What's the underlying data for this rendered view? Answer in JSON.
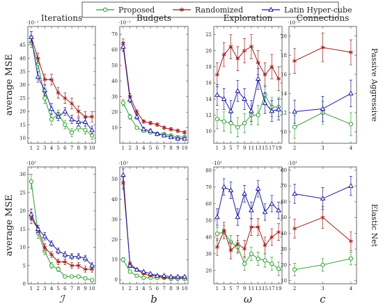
{
  "legend": [
    {
      "name": "Proposed",
      "color": "#2e9e2e",
      "marker": "circle"
    },
    {
      "name": "Randomized",
      "color": "#a01818",
      "marker": "star"
    },
    {
      "name": "Latin Hyper-cube",
      "color": "#1a1a9a",
      "marker": "triangle"
    }
  ],
  "chart_data": [
    {
      "type": "line",
      "title": "Iterations",
      "y_label": "average MSE",
      "scale_label": "·10⁻¹",
      "x": [
        1,
        2,
        3,
        4,
        5,
        6,
        7,
        8,
        9,
        10
      ],
      "xlim": [
        0.5,
        10.5
      ],
      "xticks": [
        1,
        2,
        3,
        4,
        5,
        6,
        7,
        8,
        9,
        10
      ],
      "ylim": [
        8,
        52
      ],
      "yticks": [
        10,
        15,
        20,
        25,
        30,
        35,
        40,
        45
      ],
      "series": [
        {
          "values": [
            46,
            38,
            25,
            17,
            19,
            15,
            12,
            14,
            13,
            11
          ],
          "errors": [
            2,
            2,
            2,
            2,
            1.5,
            1.5,
            1.5,
            1.5,
            1.5,
            1.5
          ]
        },
        {
          "values": [
            48,
            40,
            32,
            32,
            27,
            25,
            23,
            20,
            18,
            18
          ],
          "errors": [
            2,
            2,
            2,
            2,
            2,
            2,
            2,
            2,
            2,
            2
          ]
        },
        {
          "values": [
            48,
            33,
            28,
            21,
            18,
            20,
            17,
            16,
            16,
            13
          ],
          "errors": [
            2,
            2,
            2,
            2,
            1.5,
            1.5,
            1.5,
            1.5,
            1.5,
            1.5
          ]
        }
      ]
    },
    {
      "type": "line",
      "title": "Budgets",
      "scale_label": "·10⁻¹",
      "x": [
        1,
        2,
        3,
        4,
        5,
        6,
        7,
        8,
        9,
        10
      ],
      "xlim": [
        0.5,
        10.5
      ],
      "xticks": [
        1,
        2,
        3,
        4,
        5,
        6,
        7,
        8,
        9,
        10
      ],
      "ylim": [
        0,
        75
      ],
      "yticks": [
        10,
        20,
        30,
        40,
        50,
        60,
        70
      ],
      "series": [
        {
          "values": [
            26,
            17,
            10,
            8,
            7,
            6,
            6,
            5,
            4,
            4
          ],
          "errors": [
            2,
            1.5,
            1,
            1,
            1,
            1,
            1,
            1,
            1,
            1
          ]
        },
        {
          "values": [
            64,
            30,
            20,
            14,
            13,
            12,
            10,
            9,
            8,
            7
          ],
          "errors": [
            3,
            2,
            1.5,
            1,
            1,
            1,
            1,
            1,
            1,
            1
          ]
        },
        {
          "values": [
            62,
            28,
            17,
            9,
            8,
            6,
            5,
            4,
            3,
            3
          ],
          "errors": [
            3,
            2,
            1.5,
            1,
            1,
            1,
            1,
            1,
            1,
            1
          ]
        }
      ]
    },
    {
      "type": "line",
      "title": "Exploration",
      "x": [
        1,
        3,
        5,
        7,
        9,
        11,
        13,
        15,
        17,
        19
      ],
      "xlim": [
        0,
        20
      ],
      "xticks": [
        1,
        3,
        5,
        7,
        9,
        11,
        13,
        15,
        17,
        19
      ],
      "ylim": [
        8.5,
        23
      ],
      "yticks": [
        10,
        12,
        14,
        16,
        18,
        20,
        22
      ],
      "series": [
        {
          "values": [
            11.5,
            11.2,
            11,
            10.5,
            11,
            12,
            12,
            14.5,
            13,
            13
          ],
          "errors": [
            1.2,
            1.2,
            1.2,
            1.2,
            1.2,
            1.2,
            1.2,
            1.2,
            1.2,
            1.2
          ]
        },
        {
          "values": [
            17,
            19.5,
            20.5,
            19,
            20,
            20.5,
            18.5,
            17,
            18,
            16.5
          ],
          "errors": [
            1.5,
            1.5,
            1.5,
            1.5,
            1.5,
            1.5,
            1.5,
            1.5,
            1.5,
            1.5
          ]
        },
        {
          "values": [
            14.5,
            14,
            12.5,
            15,
            14,
            12.5,
            16.5,
            13.5,
            12.5,
            12.7
          ],
          "errors": [
            1.3,
            1.3,
            1.3,
            1.3,
            1.3,
            1.3,
            1.3,
            1.3,
            1.3,
            1.3
          ]
        }
      ]
    },
    {
      "type": "line",
      "title": "Connections",
      "right_label": "Passive Aggressive",
      "scale_label": "·10⁻¹",
      "x": [
        2,
        3,
        4
      ],
      "xlim": [
        1.8,
        4.2
      ],
      "xticks": [
        2,
        3,
        4
      ],
      "ylim": [
        8.8,
        21
      ],
      "yticks": [
        10,
        12,
        14,
        16,
        18,
        20
      ],
      "series": [
        {
          "values": [
            10.5,
            12,
            10.8
          ],
          "errors": [
            1.2,
            1.2,
            1.2
          ]
        },
        {
          "values": [
            17.4,
            18.8,
            18.3
          ],
          "errors": [
            1.3,
            1.5,
            1.3
          ]
        },
        {
          "values": [
            12.1,
            12.4,
            14
          ],
          "errors": [
            1.2,
            1.3,
            1.4
          ]
        }
      ]
    },
    {
      "type": "line",
      "y_label": "average MSE",
      "x_label": "ℐ",
      "scale_label": "·10²",
      "x": [
        1,
        2,
        3,
        4,
        5,
        6,
        7,
        8,
        9,
        10
      ],
      "xlim": [
        0.5,
        10.5
      ],
      "xticks": [
        1,
        2,
        3,
        4,
        5,
        6,
        7,
        8,
        9,
        10
      ],
      "ylim": [
        0,
        32
      ],
      "yticks": [
        0,
        5,
        10,
        15,
        20,
        25,
        30
      ],
      "series": [
        {
          "values": [
            28,
            14,
            9,
            5,
            4,
            2,
            2,
            2,
            1.5,
            1
          ],
          "errors": [
            2,
            1.5,
            1,
            0.8,
            0.6,
            0.4,
            0.4,
            0.4,
            0.3,
            0.3
          ]
        },
        {
          "values": [
            18,
            15,
            10,
            8,
            6,
            6,
            5,
            5,
            4,
            4
          ],
          "errors": [
            1.5,
            1,
            1,
            0.8,
            0.8,
            0.8,
            0.8,
            0.8,
            0.8,
            0.8
          ]
        },
        {
          "values": [
            19,
            15,
            13,
            11,
            9,
            8,
            7.5,
            7.5,
            7,
            5
          ],
          "errors": [
            1.5,
            1,
            1,
            0.8,
            0.8,
            0.8,
            0.8,
            0.8,
            0.8,
            0.8
          ]
        }
      ]
    },
    {
      "type": "line",
      "x_label": "b",
      "scale_label": "·10²",
      "x": [
        1,
        2,
        3,
        4,
        5,
        6,
        7,
        8,
        9,
        10
      ],
      "xlim": [
        0.5,
        10.5
      ],
      "xticks": [
        1,
        2,
        3,
        4,
        5,
        6,
        7,
        8,
        9,
        10
      ],
      "ylim": [
        -2,
        56
      ],
      "yticks": [
        0,
        10,
        20,
        30,
        40,
        50
      ],
      "series": [
        {
          "values": [
            10,
            4,
            2,
            1,
            1,
            1,
            1,
            0.5,
            0.5,
            0.5
          ],
          "errors": [
            1,
            0.6,
            0.4,
            0.3,
            0.3,
            0.3,
            0.3,
            0.3,
            0.3,
            0.3
          ]
        },
        {
          "values": [
            48,
            8,
            5,
            3,
            2,
            2,
            1,
            1,
            1,
            1
          ],
          "errors": [
            3,
            1,
            0.6,
            0.4,
            0.3,
            0.3,
            0.3,
            0.3,
            0.3,
            0.3
          ]
        },
        {
          "values": [
            52,
            7,
            5,
            4,
            3,
            2,
            2,
            1.5,
            1.5,
            1.5
          ],
          "errors": [
            3,
            1,
            0.6,
            0.4,
            0.3,
            0.3,
            0.3,
            0.3,
            0.3,
            0.3
          ]
        }
      ]
    },
    {
      "type": "line",
      "x_label": "ω",
      "scale_label": "·10¹",
      "x": [
        1,
        3,
        5,
        7,
        9,
        11,
        13,
        15,
        17,
        19
      ],
      "xlim": [
        0,
        20
      ],
      "xticks": [
        1,
        3,
        5,
        7,
        9,
        11,
        13,
        15,
        17,
        19
      ],
      "ylim": [
        12,
        82
      ],
      "yticks": [
        20,
        30,
        40,
        50,
        60,
        70,
        80
      ],
      "series": [
        {
          "values": [
            42,
            43,
            37,
            34,
            24,
            30,
            27,
            26,
            24,
            21
          ],
          "errors": [
            4,
            4,
            4,
            4,
            4,
            4,
            4,
            4,
            4,
            4
          ]
        },
        {
          "values": [
            34,
            44,
            32,
            36,
            33,
            46,
            46,
            35,
            40,
            43
          ],
          "errors": [
            5,
            5,
            5,
            5,
            5,
            5,
            5,
            5,
            5,
            5
          ]
        },
        {
          "values": [
            52,
            70,
            68,
            52,
            66,
            56,
            69,
            55,
            60,
            56
          ],
          "errors": [
            5,
            5,
            5,
            5,
            5,
            5,
            5,
            5,
            5,
            5
          ]
        }
      ]
    },
    {
      "type": "line",
      "x_label": "c",
      "right_label": "Elastic Net",
      "scale_label": "·10¹",
      "x": [
        2,
        3,
        4
      ],
      "xlim": [
        1.8,
        4.2
      ],
      "xticks": [
        2,
        3,
        4
      ],
      "ylim": [
        8,
        82
      ],
      "yticks": [
        10,
        20,
        30,
        40,
        50,
        60,
        70,
        80
      ],
      "series": [
        {
          "values": [
            17,
            20,
            24
          ],
          "errors": [
            4,
            4,
            4
          ]
        },
        {
          "values": [
            43,
            50,
            35
          ],
          "errors": [
            6,
            7,
            6
          ]
        },
        {
          "values": [
            65,
            62,
            70
          ],
          "errors": [
            6,
            7,
            6
          ]
        }
      ]
    }
  ]
}
